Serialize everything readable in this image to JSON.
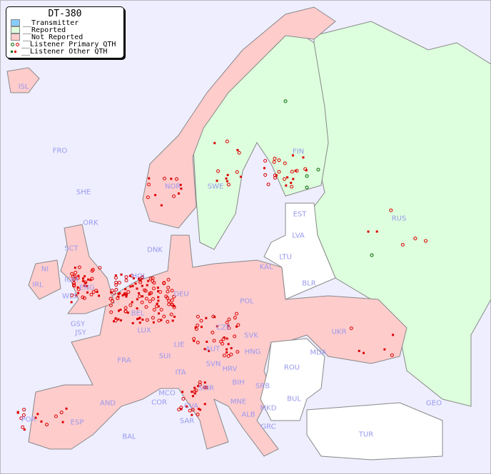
{
  "legend": {
    "title": "DT-380",
    "items": [
      {
        "label": "__Transmitter",
        "color": "#88ccff"
      },
      {
        "label": "__Reported",
        "color": "#ddffdd"
      },
      {
        "label": "__Not Reported",
        "color": "#ffcccc"
      },
      {
        "label": "__Listener Primary QTH",
        "colors": [
          "#006600",
          "#dd0000"
        ]
      },
      {
        "label": "__Listener Other QTH",
        "colors": [
          "#006600",
          "#dd0000"
        ]
      }
    ]
  },
  "colors": {
    "sea": "#eeeeff",
    "reported": "#ddffdd",
    "not_reported": "#ffcccc",
    "no_data": "#ffffff",
    "dot": "#dd0000",
    "dot_reported": "#006600",
    "label": "#9999ee"
  },
  "countries": [
    "ISL",
    "FRO",
    "SHE",
    "ORK",
    "NOR",
    "SWE",
    "FIN",
    "RUS",
    "EST",
    "LVA",
    "LTU",
    "KAL",
    "BLR",
    "DNK",
    "HOL",
    "DEU",
    "POL",
    "UKR",
    "IRL",
    "NI",
    "SCT",
    "IOM",
    "WLS",
    "ENG",
    "GSY",
    "JSY",
    "BEL",
    "LUX",
    "FRA",
    "SUI",
    "LIE",
    "AUT",
    "CZE",
    "SVK",
    "HNG",
    "MDA",
    "ROU",
    "SVN",
    "HRV",
    "BIH",
    "SRB",
    "ITA",
    "MCO",
    "COR",
    "CVA",
    "SMR",
    "MNE",
    "ALB",
    "MKD",
    "BUL",
    "GRC",
    "TUR",
    "GEO",
    "AND",
    "POR",
    "ESP",
    "BAL",
    "SAR"
  ]
}
